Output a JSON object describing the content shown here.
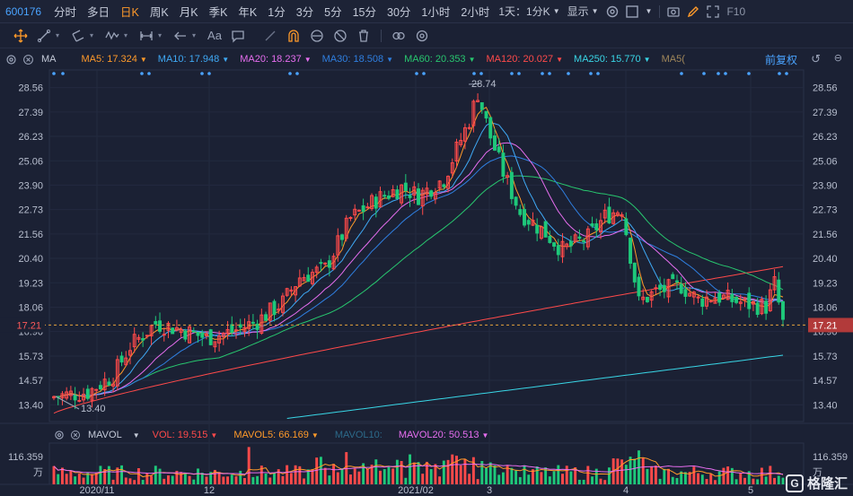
{
  "stock_code": "600176",
  "timeframes": [
    "分时",
    "多日",
    "日K",
    "周K",
    "月K",
    "季K",
    "年K",
    "1分",
    "3分",
    "5分",
    "15分",
    "30分",
    "1小时",
    "2小时"
  ],
  "active_timeframe": "日K",
  "period_select": "1天：1分K",
  "display_label": "显示",
  "f10_label": "F10",
  "main": {
    "indicator": "MA",
    "ma": [
      {
        "label": "MA5: 17.324",
        "color": "#ff9a2a"
      },
      {
        "label": "MA10: 17.948",
        "color": "#3fa9f5"
      },
      {
        "label": "MA20: 18.237",
        "color": "#e76ef0"
      },
      {
        "label": "MA30: 18.508",
        "color": "#2f7fe0"
      },
      {
        "label": "MA60: 20.353",
        "color": "#28c76f"
      },
      {
        "label": "MA120: 20.027",
        "color": "#ff4a4a"
      },
      {
        "label": "MA250: 15.770",
        "color": "#39d6e6"
      },
      {
        "label": "MA5(",
        "color": "#a0875a"
      }
    ],
    "adjust_label": "前复权",
    "price_labels": [
      "28.56",
      "27.39",
      "26.23",
      "25.06",
      "23.90",
      "22.73",
      "21.56",
      "20.40",
      "19.23",
      "18.06",
      "16.90",
      "15.73",
      "14.57",
      "13.40"
    ],
    "current_price": "17.21",
    "high_label": "28.74",
    "low_label": "13.40",
    "date_labels": [
      "2020/11",
      "12",
      "2021/02",
      "3",
      "4",
      "5"
    ]
  },
  "volume": {
    "indicator": "MAVOL",
    "items": [
      {
        "label": "VOL: 19.515",
        "color": "#ff4a4a"
      },
      {
        "label": "MAVOL5: 66.169",
        "color": "#ff9a2a"
      },
      {
        "label": "MAVOL10:",
        "color": "#2c6a8a"
      },
      {
        "label": "MAVOL20: 50.513",
        "color": "#e76ef0"
      }
    ],
    "max_label": "116.359",
    "unit_label": "万"
  },
  "watermark": "格隆汇",
  "colors": {
    "up": "#ff4a4a",
    "down": "#1ec87a",
    "accent": "#ff9a2a",
    "link": "#4aa3ff"
  },
  "chart_data": {
    "type": "candlestick",
    "ylim": [
      13.4,
      28.74
    ],
    "events_series": "MA5, MA10, MA20, MA30, MA60, MA120, MA250",
    "key_points": {
      "high": 28.74,
      "low": 13.4,
      "last": 17.21
    }
  }
}
